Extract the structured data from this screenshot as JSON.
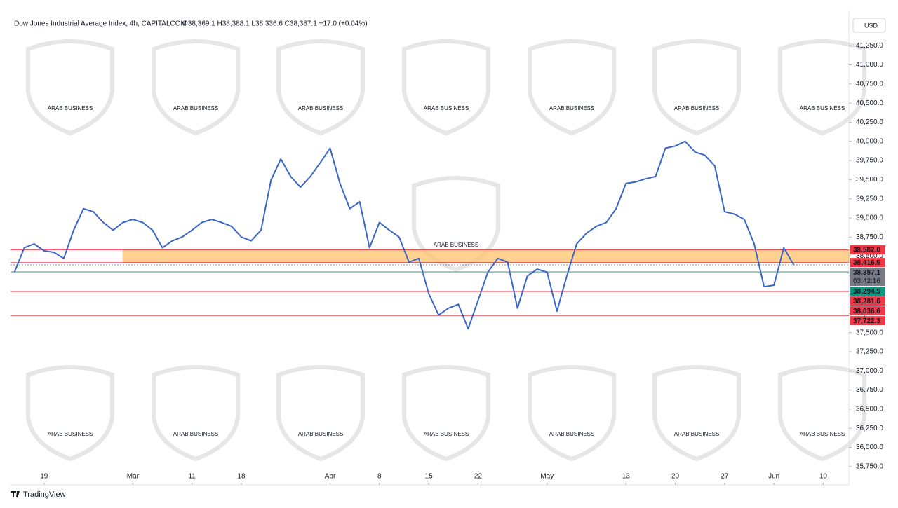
{
  "chart_data": {
    "type": "line",
    "title": "Dow Jones Industrial Average Index, 4h, CAPITALCOM",
    "ohlc": "O38,369.1 H38,388.1 L38,336.6 C38,387.1 +17.0 (+0.04%)",
    "currency": "USD",
    "brand": "TradingView",
    "watermark": "ARAB BUSINESS",
    "xlim": [
      -3.4,
      81.6
    ],
    "ylim": [
      35510,
      41710
    ],
    "xticks": [
      {
        "value": 0,
        "label": "19"
      },
      {
        "value": 9,
        "label": "Mar"
      },
      {
        "value": 15,
        "label": "11"
      },
      {
        "value": 20,
        "label": "18"
      },
      {
        "value": 29,
        "label": "Apr"
      },
      {
        "value": 34,
        "label": "8"
      },
      {
        "value": 39,
        "label": "15"
      },
      {
        "value": 44,
        "label": "22"
      },
      {
        "value": 51,
        "label": "May"
      },
      {
        "value": 59,
        "label": "13"
      },
      {
        "value": 64,
        "label": "20"
      },
      {
        "value": 69,
        "label": "27"
      },
      {
        "value": 74,
        "label": "Jun"
      },
      {
        "value": 79,
        "label": "10"
      }
    ],
    "yticks": [
      {
        "value": 35750,
        "label": "35,750.0"
      },
      {
        "value": 36000,
        "label": "36,000.0"
      },
      {
        "value": 36250,
        "label": "36,250.0"
      },
      {
        "value": 36500,
        "label": "36,500.0"
      },
      {
        "value": 36750,
        "label": "36,750.0"
      },
      {
        "value": 37000,
        "label": "37,000.0"
      },
      {
        "value": 37250,
        "label": "37,250.0"
      },
      {
        "value": 37500,
        "label": "37,500.0"
      },
      {
        "value": 37750,
        "label": "37,750.0"
      },
      {
        "value": 38000,
        "label": "38,000.0"
      },
      {
        "value": 38250,
        "label": "38,250.0"
      },
      {
        "value": 38500,
        "label": "38,500.0"
      },
      {
        "value": 38750,
        "label": "38,750.0"
      },
      {
        "value": 39000,
        "label": "39,000.0"
      },
      {
        "value": 39250,
        "label": "39,250.0"
      },
      {
        "value": 39500,
        "label": "39,500.0"
      },
      {
        "value": 39750,
        "label": "39,750.0"
      },
      {
        "value": 40000,
        "label": "40,000.0"
      },
      {
        "value": 40250,
        "label": "40,250.0"
      },
      {
        "value": 40500,
        "label": "40,500.0"
      },
      {
        "value": 40750,
        "label": "40,750.0"
      },
      {
        "value": 41000,
        "label": "41,000.0"
      },
      {
        "value": 41250,
        "label": "41,250.0"
      }
    ],
    "x": [
      -3,
      -2,
      -1,
      0,
      1,
      2,
      3,
      4,
      5,
      6,
      7,
      8,
      9,
      10,
      11,
      12,
      13,
      14,
      15,
      16,
      17,
      18,
      19,
      20,
      21,
      22,
      23,
      24,
      25,
      26,
      27,
      28,
      29,
      30,
      31,
      32,
      33,
      34,
      35,
      36,
      37,
      38,
      39,
      40,
      41,
      42,
      43,
      44,
      45,
      46,
      47,
      48,
      49,
      50,
      51,
      52,
      53,
      54,
      55,
      56,
      57,
      58,
      59,
      60,
      61,
      62,
      63,
      64,
      65,
      66,
      67,
      68,
      69,
      70,
      71,
      72,
      73,
      74,
      75,
      76
    ],
    "series": [
      {
        "name": "DJI",
        "color": "#3a66c9",
        "values": [
          38290,
          38610,
          38660,
          38570,
          38550,
          38470,
          38840,
          39120,
          39080,
          38940,
          38840,
          38940,
          38980,
          38940,
          38840,
          38610,
          38700,
          38750,
          38840,
          38940,
          38980,
          38940,
          38890,
          38750,
          38700,
          38840,
          39490,
          39770,
          39540,
          39400,
          39540,
          39720,
          39910,
          39450,
          39120,
          39210,
          38610,
          38940,
          38840,
          38750,
          38420,
          38470,
          38010,
          37730,
          37820,
          37870,
          37550,
          37920,
          38290,
          38470,
          38420,
          37820,
          38240,
          38330,
          38290,
          37780,
          38240,
          38660,
          38800,
          38890,
          38940,
          39120,
          39450,
          39470,
          39510,
          39540,
          39910,
          39940,
          40000,
          39860,
          39820,
          39680,
          39080,
          39050,
          38980,
          38660,
          38100,
          38120,
          38610,
          38387.1
        ]
      }
    ],
    "zone": {
      "from": 38416.5,
      "to": 38582.0,
      "start": 8,
      "color": "#ffc46b"
    },
    "levels": [
      {
        "value": 38582.0,
        "label": "38,582.0",
        "color": "#f23645"
      },
      {
        "value": 38416.5,
        "label": "38,416.5",
        "color": "#f23645"
      },
      {
        "value": 38387.1,
        "label": "38,387.1",
        "countdown": "03:42:16",
        "color": "#787b86"
      },
      {
        "value": 38294.5,
        "label": "38,294.5",
        "color": "#089981"
      },
      {
        "value": 38281.6,
        "label": "38,281.6",
        "color": "#f23645"
      },
      {
        "value": 38036.6,
        "label": "38,036.6",
        "color": "#f23645"
      },
      {
        "value": 37722.3,
        "label": "37,722.3",
        "color": "#f23645"
      }
    ]
  }
}
